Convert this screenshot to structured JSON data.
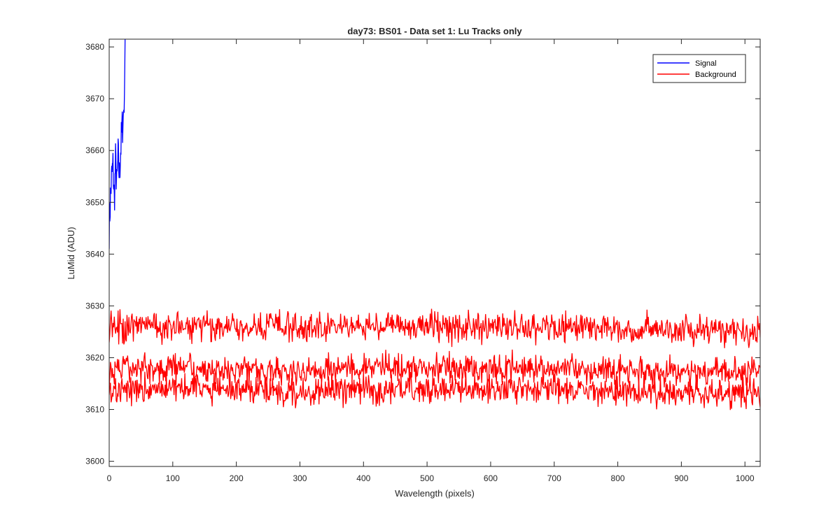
{
  "chart_data": {
    "type": "line",
    "title": "day73: BS01 - Data set 1: Lu Tracks only",
    "xlabel": "Wavelength (pixels)",
    "ylabel": "LuMid (ADU)",
    "xlim": [
      0,
      1024
    ],
    "ylim": [
      3599,
      3681.5
    ],
    "xticks": [
      0,
      100,
      200,
      300,
      400,
      500,
      600,
      700,
      800,
      900,
      1000
    ],
    "yticks": [
      3600,
      3610,
      3620,
      3630,
      3640,
      3650,
      3660,
      3670,
      3680
    ],
    "grid": false,
    "legend_position": "top-right",
    "legend": [
      "Signal",
      "Background"
    ],
    "series": [
      {
        "name": "Signal",
        "color": "#0000ff",
        "x": [
          0,
          2,
          4,
          6,
          8,
          10,
          12,
          14,
          16,
          18,
          20,
          22,
          24,
          25
        ],
        "y": [
          3645,
          3651,
          3655,
          3657,
          3650,
          3658,
          3653,
          3659,
          3655,
          3660,
          3664,
          3666,
          3671,
          3681.5
        ]
      },
      {
        "name": "Background",
        "color": "#ff0000",
        "x": [
          0,
          100,
          200,
          300,
          400,
          500,
          600,
          700,
          800,
          900,
          1024
        ],
        "y": [
          3626,
          3626,
          3626,
          3626,
          3626,
          3626,
          3626,
          3626,
          3625.5,
          3625.5,
          3625
        ]
      },
      {
        "name": "Background",
        "color": "#ff0000",
        "x": [
          0,
          100,
          200,
          300,
          400,
          500,
          600,
          700,
          800,
          900,
          1024
        ],
        "y": [
          3618,
          3618,
          3617.5,
          3617.5,
          3618,
          3618,
          3618,
          3618,
          3617.5,
          3617.5,
          3617
        ]
      },
      {
        "name": "Background",
        "color": "#ff0000",
        "x": [
          0,
          100,
          200,
          300,
          400,
          500,
          600,
          700,
          800,
          900,
          1024
        ],
        "y": [
          3614,
          3614,
          3614,
          3613.5,
          3614,
          3614,
          3614,
          3614,
          3613.5,
          3613.5,
          3613
        ]
      }
    ]
  }
}
